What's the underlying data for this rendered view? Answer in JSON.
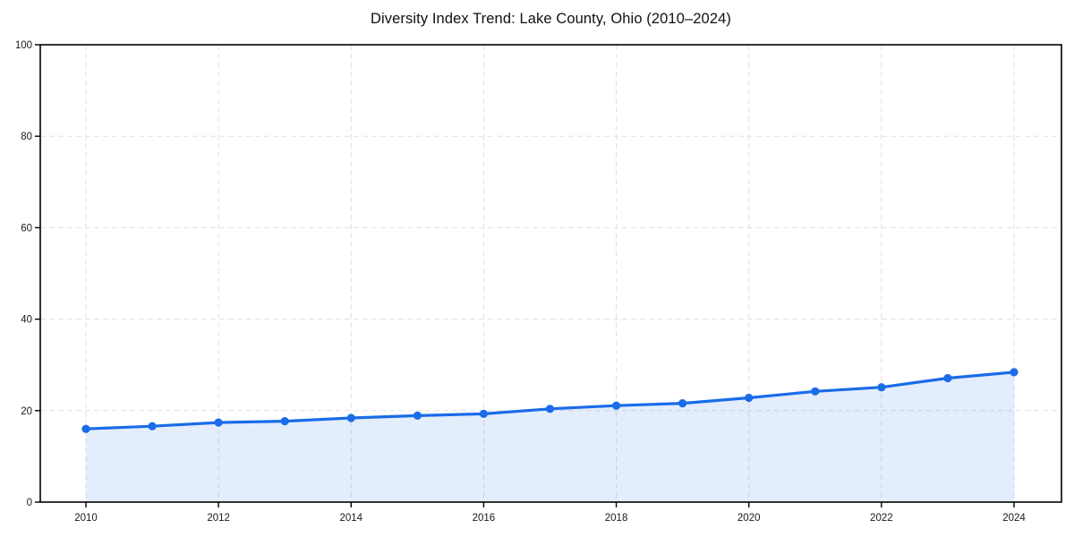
{
  "chart_data": {
    "type": "line",
    "title": "Diversity Index Trend: Lake County, Ohio (2010–2024)",
    "xlabel": "",
    "ylabel": "",
    "x": [
      2010,
      2011,
      2012,
      2013,
      2014,
      2015,
      2016,
      2017,
      2018,
      2019,
      2020,
      2021,
      2022,
      2023,
      2024
    ],
    "values": [
      16.0,
      16.6,
      17.4,
      17.7,
      18.4,
      18.9,
      19.3,
      20.4,
      21.1,
      21.6,
      22.8,
      24.2,
      25.1,
      27.1,
      28.4
    ],
    "xticks": [
      2010,
      2012,
      2014,
      2016,
      2018,
      2020,
      2022,
      2024
    ],
    "yticks": [
      0,
      20,
      40,
      60,
      80,
      100
    ],
    "xlim": [
      2010,
      2024
    ],
    "ylim": [
      0,
      100
    ],
    "grid": "dashed",
    "legend_position": "none",
    "area_fill": true,
    "colors": {
      "line": "#1a6ce8",
      "marker": "#1a6ce8",
      "area_fill": "#1a6ce8",
      "area_fill_opacity": 0.12,
      "gridline": "#e0e0e0",
      "axis": "#000000",
      "tick_text": "#1a1a1a",
      "title_text": "#111111",
      "background": "#ffffff"
    }
  }
}
